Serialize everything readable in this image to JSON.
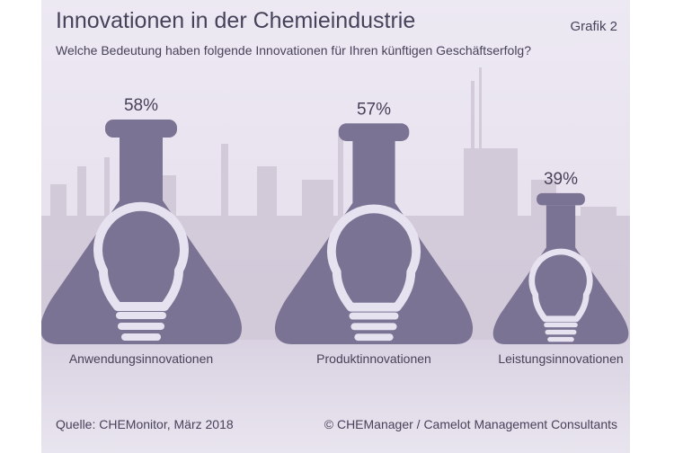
{
  "header": {
    "title": "Innovationen in der Chemieindustrie",
    "figure_label": "Grafik 2",
    "subtitle": "Welche Bedeutung haben folgende Innovationen für Ihren künftigen Geschäftserfolg?"
  },
  "footer": {
    "source": "Quelle: CHEMonitor, März 2018",
    "copyright": "© CHEManager / Camelot Management Consultants"
  },
  "colors": {
    "flask": "#7b7393",
    "text": "#47425a",
    "bulb": "#e7e2ef"
  },
  "chart_data": {
    "type": "bar",
    "title": "Innovationen in der Chemieindustrie",
    "subtitle": "Welche Bedeutung haben folgende Innovationen für Ihren künftigen Geschäftserfolg?",
    "categories": [
      "Anwendungsinnovationen",
      "Produktinnovationen",
      "Leistungsinnovationen"
    ],
    "values": [
      58,
      57,
      39
    ],
    "value_labels": [
      "58%",
      "57%",
      "39%"
    ],
    "unit": "%",
    "marker_icon": "flask-with-lightbulb-icon"
  }
}
